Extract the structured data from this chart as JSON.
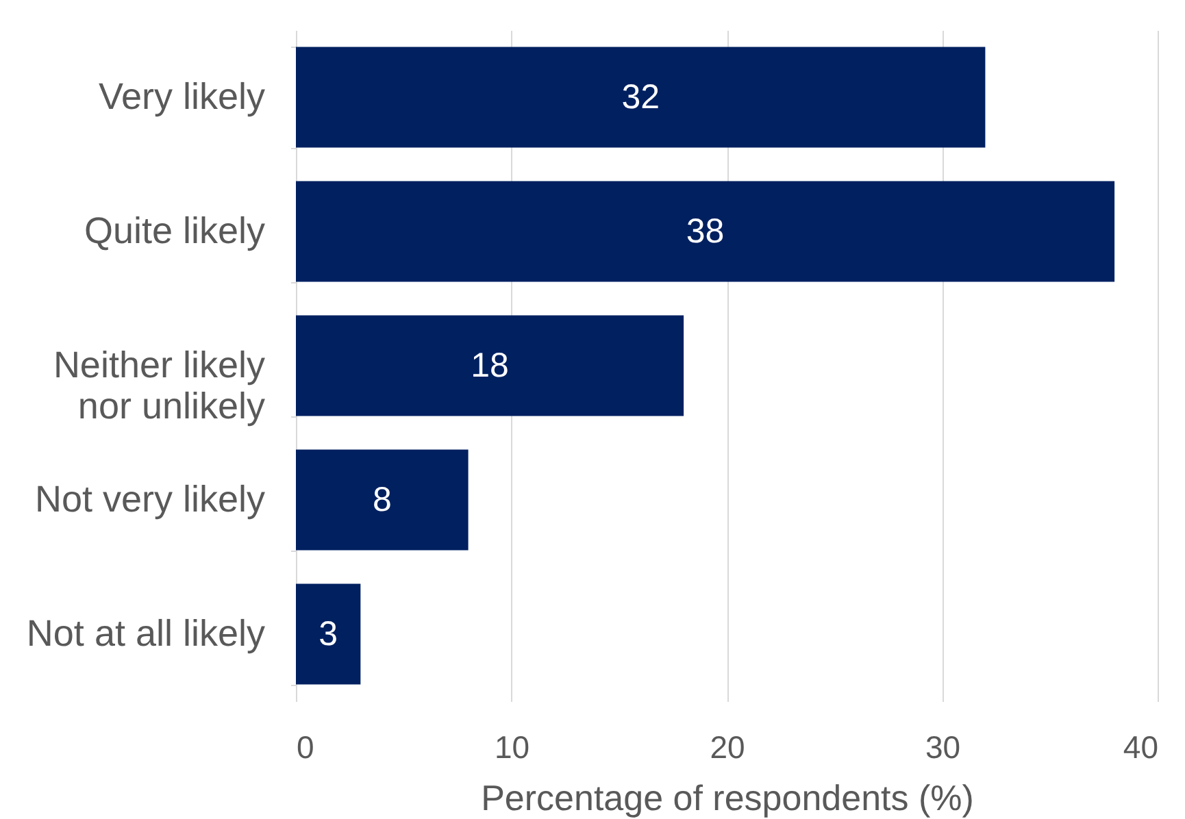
{
  "chart_data": {
    "type": "bar",
    "orientation": "horizontal",
    "categories": [
      "Very likely",
      "Quite likely",
      "Neither likely nor unlikely",
      "Not very likely",
      "Not at all likely"
    ],
    "values": [
      32,
      38,
      18,
      8,
      3
    ],
    "color": "#002060",
    "data_labels": true,
    "xlabel": "Percentage of respondents (%)",
    "xlim": [
      0,
      40
    ],
    "xticks": [
      0,
      10,
      20,
      30,
      40
    ],
    "grid": "x"
  }
}
